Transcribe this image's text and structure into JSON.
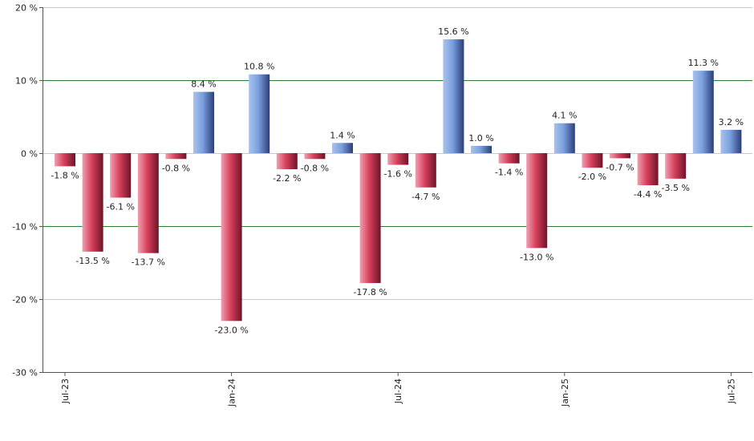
{
  "chart_data": {
    "type": "bar",
    "ylim": [
      -30,
      20
    ],
    "yticks": [
      20,
      10,
      0,
      -10,
      -20,
      -30
    ],
    "ytick_labels": [
      "20 %",
      "10 %",
      "0 %",
      "-10 %",
      "-20 %",
      "-30 %"
    ],
    "highlight_gridlines": [
      10,
      -10
    ],
    "grid": true,
    "legend": "none",
    "values": [
      -1.8,
      -13.5,
      -6.1,
      -13.7,
      -0.8,
      8.4,
      -23.0,
      10.8,
      -2.2,
      -0.8,
      1.4,
      -17.8,
      -1.6,
      -4.7,
      15.6,
      1.0,
      -1.4,
      -13.0,
      4.1,
      -2.0,
      -0.7,
      -4.4,
      -3.5,
      11.3,
      3.2
    ],
    "value_labels": [
      "-1.8 %",
      "-13.5 %",
      "-6.1 %",
      "-13.7 %",
      "-0.8 %",
      "8.4 %",
      "-23.0 %",
      "10.8 %",
      "-2.2 %",
      "-0.8 %",
      "1.4 %",
      "-17.8 %",
      "-1.6 %",
      "-4.7 %",
      "15.6 %",
      "1.0 %",
      "-1.4 %",
      "-13.0 %",
      "4.1 %",
      "-2.0 %",
      "-0.7 %",
      "-4.4 %",
      "-3.5 %",
      "11.3 %",
      "3.2 %"
    ],
    "x_tick_labels": [
      "Jul-23",
      "Jan-24",
      "Jul-24",
      "Jan-25",
      "Jul-25"
    ],
    "x_tick_indices": [
      0,
      6,
      12,
      18,
      24
    ],
    "colors": {
      "positive": "#6f93d6",
      "negative": "#d03a55",
      "grid": "#c8c8c8",
      "highlight_grid": "#2e7d2e",
      "axis": "#555555"
    }
  }
}
